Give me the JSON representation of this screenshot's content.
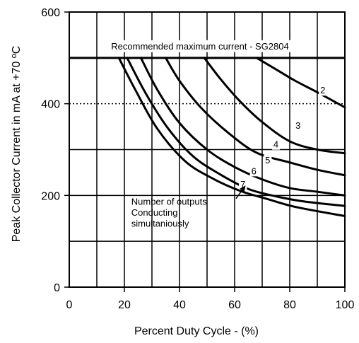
{
  "chart_data": {
    "type": "line",
    "xlabel": "Percent Duty Cycle - (%)",
    "ylabel": "Peak Collector Current in mA at +70 ºC",
    "xlim": [
      0,
      100
    ],
    "ylim": [
      0,
      600
    ],
    "xticks": [
      0,
      20,
      40,
      60,
      80,
      100
    ],
    "yticks": [
      0,
      200,
      400,
      600
    ],
    "x_tick_labels": [
      "0",
      "20",
      "40",
      "60",
      "80",
      "100"
    ],
    "y_tick_labels": [
      "0",
      "200",
      "400",
      "600"
    ],
    "vertical_gridlines": [
      10,
      20,
      30,
      40,
      50,
      60,
      70,
      80,
      90,
      100
    ],
    "horizontal_gridlines": [
      100,
      200,
      300,
      400,
      500,
      600
    ],
    "dotted_gridline": 400,
    "grid": true,
    "limit_line": {
      "y": 500,
      "label": "Recommended maximum current - SG2804"
    },
    "annotation": {
      "lines": [
        "Number of outputs",
        "Conducting",
        "simultaniously"
      ],
      "arrow_from": [
        60.5,
        193
      ],
      "arrow_to": [
        64,
        222
      ]
    },
    "series": [
      {
        "name": "2",
        "x": [
          68,
          75,
          82,
          90,
          100
        ],
        "y": [
          500,
          475,
          450,
          425,
          392
        ],
        "label_at": [
          92,
          430
        ]
      },
      {
        "name": "3",
        "x": [
          49,
          55,
          62,
          70,
          80,
          90,
          100
        ],
        "y": [
          500,
          453,
          405,
          360,
          318,
          300,
          292
        ],
        "label_at": [
          83,
          353
        ]
      },
      {
        "name": "4",
        "x": [
          35,
          40,
          48,
          58,
          68,
          80,
          90,
          100
        ],
        "y": [
          500,
          450,
          390,
          335,
          293,
          272,
          256,
          244
        ],
        "label_at": [
          75,
          312
        ]
      },
      {
        "name": "5",
        "x": [
          26,
          32,
          40,
          50,
          60,
          70,
          80,
          90,
          100
        ],
        "y": [
          500,
          430,
          358,
          300,
          262,
          235,
          216,
          208,
          200
        ],
        "label_at": [
          72,
          278
        ]
      },
      {
        "name": "6",
        "x": [
          21,
          28,
          36,
          45,
          55,
          65,
          75,
          85,
          100
        ],
        "y": [
          500,
          420,
          345,
          285,
          245,
          214,
          198,
          187,
          177
        ],
        "label_at": [
          67,
          254
        ]
      },
      {
        "name": "7",
        "x": [
          18,
          24,
          32,
          42,
          52,
          62,
          72,
          82,
          100
        ],
        "y": [
          500,
          430,
          345,
          275,
          237,
          210,
          192,
          175,
          155
        ],
        "label_at": [
          63,
          225
        ]
      }
    ]
  }
}
